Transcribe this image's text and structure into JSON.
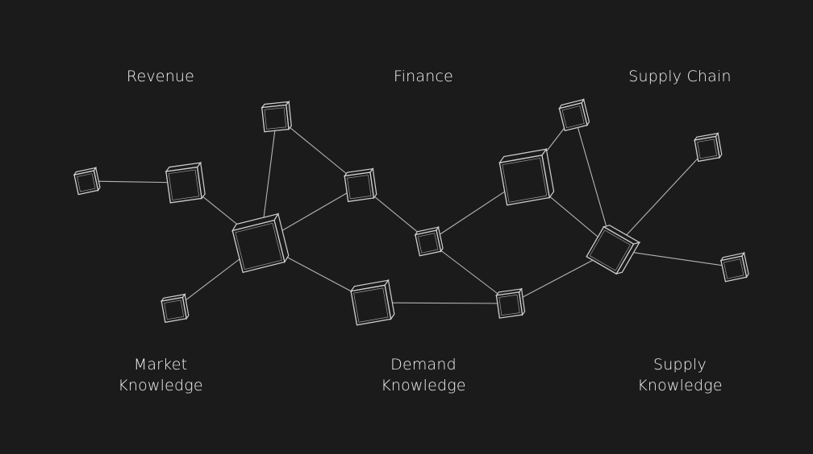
{
  "labels": {
    "revenue": "Revenue",
    "finance": "Finance",
    "supply_chain": "Supply Chain",
    "market_knowledge": "Market\nKnowledge",
    "demand_knowledge": "Demand\nKnowledge",
    "supply_knowledge": "Supply\nKnowledge"
  },
  "colors": {
    "background": "#1b1b1b",
    "stroke": "#d0d0d0",
    "text": "#f2f2f2"
  }
}
